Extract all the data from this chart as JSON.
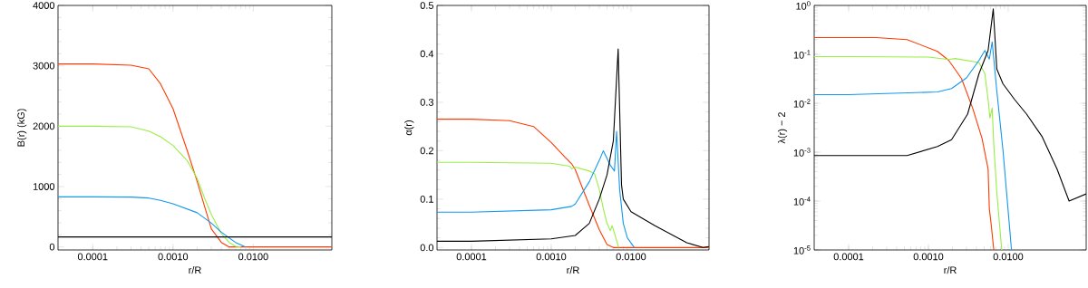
{
  "chart_data": [
    {
      "type": "line",
      "xlabel": "r/R",
      "ylabel": "B(r) (kG)",
      "xlim": [
        3.7e-05,
        0.095
      ],
      "ylim": [
        -50,
        4000
      ],
      "log": "x",
      "xticks": [
        {
          "value": 0.0001,
          "label": "0.0001"
        },
        {
          "value": 0.001,
          "label": "0.0010"
        },
        {
          "value": 0.01,
          "label": "0.0100"
        }
      ],
      "yticks": [
        0,
        1000,
        2000,
        3000,
        4000
      ],
      "series": [
        {
          "color": "#ff3a00",
          "x": [
            3.7e-05,
            0.0001,
            0.0003,
            0.0005,
            0.0007,
            0.001,
            0.0015,
            0.002,
            0.0025,
            0.003,
            0.004,
            0.005,
            0.01,
            0.095
          ],
          "values": [
            3030,
            3030,
            3010,
            2950,
            2700,
            2290,
            1600,
            1085,
            650,
            300,
            75,
            0,
            0,
            0
          ]
        },
        {
          "color": "#99ee44",
          "x": [
            3.7e-05,
            0.0001,
            0.0003,
            0.0005,
            0.0007,
            0.001,
            0.0015,
            0.002,
            0.0025,
            0.003,
            0.004,
            0.005,
            0.006,
            0.007
          ],
          "values": [
            2000,
            2000,
            1990,
            1920,
            1825,
            1680,
            1430,
            1135,
            790,
            540,
            220,
            75,
            10,
            0
          ]
        },
        {
          "color": "#1199ee",
          "x": [
            3.7e-05,
            0.0001,
            0.0003,
            0.0005,
            0.0007,
            0.001,
            0.002,
            0.003,
            0.004,
            0.005,
            0.006,
            0.008
          ],
          "values": [
            830,
            830,
            825,
            810,
            770,
            715,
            567,
            395,
            245,
            150,
            75,
            0
          ]
        },
        {
          "color": "#000000",
          "x": [
            3.7e-05,
            0.095
          ],
          "values": [
            165,
            165
          ]
        }
      ]
    },
    {
      "type": "line",
      "xlabel": "r/R",
      "ylabel": "α(r)",
      "xlim": [
        3.7e-05,
        0.095
      ],
      "ylim": [
        -0.005,
        0.5
      ],
      "log": "x",
      "xticks": [
        {
          "value": 0.0001,
          "label": "0.0001"
        },
        {
          "value": 0.001,
          "label": "0.0010"
        },
        {
          "value": 0.01,
          "label": "0.0100"
        }
      ],
      "yticks": [
        {
          "value": 0,
          "label": "0.0"
        },
        {
          "value": 0.1,
          "label": "0.1"
        },
        {
          "value": 0.2,
          "label": "0.2"
        },
        {
          "value": 0.3,
          "label": "0.3"
        },
        {
          "value": 0.4,
          "label": "0.4"
        },
        {
          "value": 0.5,
          "label": "0.5"
        }
      ],
      "series": [
        {
          "color": "#ff3a00",
          "x": [
            3.7e-05,
            0.0001,
            0.0003,
            0.0006,
            0.001,
            0.0015,
            0.0018,
            0.002,
            0.003,
            0.004,
            0.005,
            0.006,
            0.095
          ],
          "values": [
            0.265,
            0.265,
            0.262,
            0.25,
            0.217,
            0.186,
            0.173,
            0.161,
            0.087,
            0.037,
            0.006,
            0,
            0
          ]
        },
        {
          "color": "#99ee44",
          "x": [
            3.7e-05,
            0.0001,
            0.001,
            0.0017,
            0.0018,
            0.002,
            0.003,
            0.0035,
            0.004,
            0.0045,
            0.005,
            0.0055,
            0.0058,
            0.0062,
            0.007
          ],
          "values": [
            0.176,
            0.176,
            0.174,
            0.168,
            0.163,
            0.166,
            0.158,
            0.152,
            0.12,
            0.08,
            0.05,
            0.035,
            0.045,
            0.03,
            0
          ]
        },
        {
          "color": "#1199ee",
          "x": [
            3.7e-05,
            0.0001,
            0.001,
            0.0018,
            0.002,
            0.003,
            0.004,
            0.0045,
            0.0055,
            0.0062,
            0.0066,
            0.0072,
            0.008,
            0.009,
            0.011
          ],
          "values": [
            0.073,
            0.073,
            0.078,
            0.085,
            0.09,
            0.136,
            0.18,
            0.2,
            0.17,
            0.158,
            0.24,
            0.12,
            0.05,
            0.02,
            0
          ]
        },
        {
          "color": "#000000",
          "x": [
            3.7e-05,
            0.0001,
            0.001,
            0.002,
            0.003,
            0.004,
            0.005,
            0.006,
            0.0069,
            0.0076,
            0.008,
            0.01,
            0.02,
            0.05,
            0.08,
            0.095
          ],
          "values": [
            0.013,
            0.013,
            0.018,
            0.025,
            0.05,
            0.1,
            0.15,
            0.22,
            0.41,
            0.13,
            0.1,
            0.074,
            0.045,
            0.01,
            0,
            0.002
          ]
        }
      ]
    },
    {
      "type": "line",
      "xlabel": "r/R",
      "ylabel": "λ(r) − 2",
      "xlim": [
        3.7e-05,
        0.095
      ],
      "ylim": [
        1e-05,
        1
      ],
      "log": "xy",
      "xticks": [
        {
          "value": 0.0001,
          "label": "0.0001"
        },
        {
          "value": 0.001,
          "label": "0.0010"
        },
        {
          "value": 0.01,
          "label": "0.0100"
        }
      ],
      "yticks": [
        {
          "value": 1e-05,
          "label": "10$^{-5}$"
        },
        {
          "value": 0.0001,
          "label": "10$^{-4}$"
        },
        {
          "value": 0.001,
          "label": "10$^{-3}$"
        },
        {
          "value": 0.01,
          "label": "10$^{-2}$"
        },
        {
          "value": 0.1,
          "label": "10$^{-1}$"
        },
        {
          "value": 1,
          "label": "10$^{0}$"
        }
      ],
      "series": [
        {
          "color": "#ff3a00",
          "x": [
            3.7e-05,
            0.0001,
            0.00022,
            0.00054,
            0.0013,
            0.0018,
            0.0026,
            0.0036,
            0.0047,
            0.0056,
            0.0058,
            0.0061,
            0.0066
          ],
          "values": [
            0.22,
            0.22,
            0.22,
            0.2,
            0.115,
            0.075,
            0.032,
            0.0078,
            0.0019,
            0.00045,
            7e-05,
            3.5e-05,
            1e-05
          ]
        },
        {
          "color": "#99ee44",
          "x": [
            3.7e-05,
            0.0001,
            0.001,
            0.0018,
            0.00215,
            0.0043,
            0.0051,
            0.0056,
            0.0059,
            0.0063,
            0.0066,
            0.0072,
            0.0083
          ],
          "values": [
            0.09,
            0.09,
            0.088,
            0.078,
            0.082,
            0.068,
            0.04,
            0.012,
            0.005,
            0.008,
            0.0014,
            0.00015,
            1e-05
          ]
        },
        {
          "color": "#1199ee",
          "x": [
            3.7e-05,
            0.0001,
            0.0013,
            0.00195,
            0.003,
            0.0043,
            0.0051,
            0.0058,
            0.0063,
            0.0072,
            0.0086,
            0.011
          ],
          "values": [
            0.015,
            0.015,
            0.017,
            0.02,
            0.033,
            0.075,
            0.12,
            0.08,
            0.18,
            0.018,
            0.0011,
            1e-05
          ]
        },
        {
          "color": "#000000",
          "x": [
            3.7e-05,
            0.0001,
            0.00054,
            0.0013,
            0.00195,
            0.0031,
            0.0043,
            0.0056,
            0.0065,
            0.0072,
            0.0086,
            0.012,
            0.017,
            0.0265,
            0.041,
            0.058,
            0.095
          ],
          "values": [
            0.00085,
            0.00085,
            0.00085,
            0.0013,
            0.0018,
            0.006,
            0.04,
            0.12,
            0.85,
            0.05,
            0.025,
            0.012,
            0.006,
            0.0021,
            0.00045,
            0.0001,
            0.00014
          ]
        }
      ]
    }
  ]
}
